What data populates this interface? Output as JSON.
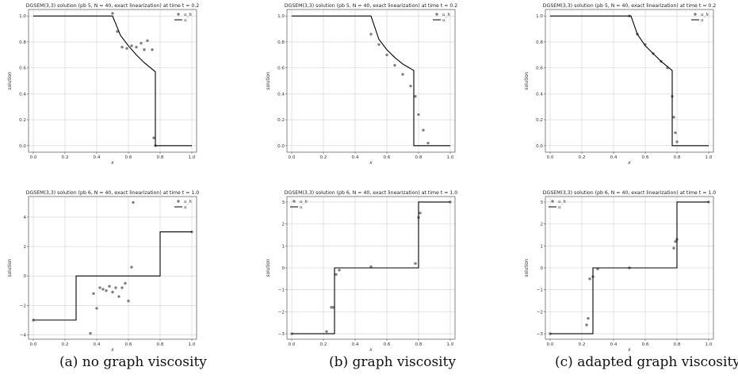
{
  "figure": {
    "captions": [
      "(a) no graph viscosity",
      "(b) graph viscosity",
      "(c) adapted graph viscosity"
    ]
  },
  "colors": {
    "numerical": "#7f7f7f",
    "exact": "#000000",
    "grid": "#d0d0d0",
    "axes": "#555555"
  },
  "chart_data": [
    {
      "type": "scatter",
      "title": "DGSEM(3,3) solution (pb 5, N = 40, exact linearization) at time t = 0.2",
      "xlabel": "x",
      "ylabel": "solution",
      "xlim": [
        -0.03,
        1.03
      ],
      "ylim": [
        -0.05,
        1.05
      ],
      "xticks": [
        "0.0",
        "0.2",
        "0.4",
        "0.6",
        "0.8",
        "1.0"
      ],
      "xtick_values": [
        0,
        0.2,
        0.4,
        0.6,
        0.8,
        1.0
      ],
      "yticks": [
        "0.0",
        "0.2",
        "0.4",
        "0.6",
        "0.8",
        "1.0"
      ],
      "ytick_values": [
        0,
        0.2,
        0.4,
        0.6,
        0.8,
        1.0
      ],
      "grid": true,
      "legend": "top-right",
      "series": [
        {
          "name": "u_h",
          "kind": "points",
          "x": [
            0.5,
            0.53,
            0.56,
            0.59,
            0.62,
            0.65,
            0.68,
            0.7,
            0.72,
            0.75,
            0.76,
            0.77
          ],
          "y": [
            1.02,
            0.88,
            0.76,
            0.75,
            0.77,
            0.76,
            0.79,
            0.74,
            0.81,
            0.74,
            0.06,
            0.0
          ]
        },
        {
          "name": "u",
          "kind": "line",
          "x": [
            0,
            0.5,
            0.55,
            0.6,
            0.65,
            0.7,
            0.76,
            0.77,
            0.77,
            1.0
          ],
          "y": [
            1.0,
            1.0,
            0.85,
            0.77,
            0.7,
            0.64,
            0.58,
            0.57,
            0.0,
            0.0
          ]
        }
      ]
    },
    {
      "type": "scatter",
      "title": "DGSEM(3,3) solution (pb 5, N = 40, exact linearization) at time t = 0.2",
      "xlabel": "x",
      "ylabel": "solution",
      "xlim": [
        -0.03,
        1.03
      ],
      "ylim": [
        -0.05,
        1.05
      ],
      "xticks": [
        "0.0",
        "0.2",
        "0.4",
        "0.6",
        "0.8",
        "1.0"
      ],
      "xtick_values": [
        0,
        0.2,
        0.4,
        0.6,
        0.8,
        1.0
      ],
      "yticks": [
        "0.0",
        "0.2",
        "0.4",
        "0.6",
        "0.8",
        "1.0"
      ],
      "ytick_values": [
        0,
        0.2,
        0.4,
        0.6,
        0.8,
        1.0
      ],
      "grid": true,
      "legend": "top-right",
      "series": [
        {
          "name": "u_h",
          "kind": "points",
          "x": [
            0.5,
            0.55,
            0.6,
            0.65,
            0.7,
            0.75,
            0.78,
            0.8,
            0.83,
            0.86
          ],
          "y": [
            0.86,
            0.78,
            0.7,
            0.62,
            0.55,
            0.46,
            0.38,
            0.24,
            0.12,
            0.02
          ]
        },
        {
          "name": "u",
          "kind": "line",
          "x": [
            0,
            0.5,
            0.55,
            0.6,
            0.65,
            0.7,
            0.77,
            0.77,
            1.0
          ],
          "y": [
            1.0,
            1.0,
            0.82,
            0.74,
            0.68,
            0.63,
            0.58,
            0.0,
            0.0
          ]
        }
      ]
    },
    {
      "type": "scatter",
      "title": "DGSEM(3,3) solution (pb 5, N = 40, exact linearization) at time t = 0.2",
      "xlabel": "x",
      "ylabel": "solution",
      "xlim": [
        -0.03,
        1.03
      ],
      "ylim": [
        -0.05,
        1.05
      ],
      "xticks": [
        "0.0",
        "0.2",
        "0.4",
        "0.6",
        "0.8",
        "1.0"
      ],
      "xtick_values": [
        0,
        0.2,
        0.4,
        0.6,
        0.8,
        1.0
      ],
      "yticks": [
        "0.0",
        "0.2",
        "0.4",
        "0.6",
        "0.8",
        "1.0"
      ],
      "ytick_values": [
        0,
        0.2,
        0.4,
        0.6,
        0.8,
        1.0
      ],
      "grid": true,
      "legend": "top-right",
      "series": [
        {
          "name": "u_h",
          "kind": "points",
          "x": [
            0.5,
            0.55,
            0.6,
            0.65,
            0.7,
            0.74,
            0.77,
            0.78,
            0.79,
            0.8
          ],
          "y": [
            1.0,
            0.86,
            0.78,
            0.71,
            0.65,
            0.6,
            0.38,
            0.22,
            0.1,
            0.03
          ]
        },
        {
          "name": "u",
          "kind": "line",
          "x": [
            0,
            0.51,
            0.55,
            0.6,
            0.65,
            0.7,
            0.76,
            0.77,
            0.77,
            1.0
          ],
          "y": [
            1.0,
            1.0,
            0.86,
            0.77,
            0.71,
            0.65,
            0.59,
            0.58,
            0.0,
            0.0
          ]
        }
      ]
    },
    {
      "type": "scatter",
      "title": "DGSEM(3,3) solution (pb 6, N = 40, exact linearization) at time t = 1.0",
      "xlabel": "x",
      "ylabel": "solution",
      "xlim": [
        -0.03,
        1.03
      ],
      "ylim": [
        -4.3,
        5.4
      ],
      "xticks": [
        "0.0",
        "0.2",
        "0.4",
        "0.6",
        "0.8",
        "1.0"
      ],
      "xtick_values": [
        0,
        0.2,
        0.4,
        0.6,
        0.8,
        1.0
      ],
      "yticks": [
        "−4",
        "−2",
        "0",
        "2",
        "4"
      ],
      "ytick_values": [
        -4,
        -2,
        0,
        2,
        4
      ],
      "grid": true,
      "legend": "top-right",
      "series": [
        {
          "name": "u_h",
          "kind": "points",
          "x": [
            0.0,
            0.36,
            0.38,
            0.4,
            0.42,
            0.44,
            0.46,
            0.48,
            0.5,
            0.52,
            0.54,
            0.56,
            0.58,
            0.6,
            0.62,
            0.63,
            1.0
          ],
          "y": [
            -3.0,
            -3.9,
            -1.2,
            -2.2,
            -0.8,
            -0.9,
            -1.0,
            -0.7,
            -1.1,
            -0.8,
            -1.4,
            -0.8,
            -0.5,
            -1.7,
            0.6,
            5.0,
            3.0
          ]
        },
        {
          "name": "u",
          "kind": "line",
          "x": [
            0,
            0.27,
            0.27,
            0.8,
            0.8,
            1.0
          ],
          "y": [
            -3.0,
            -3.0,
            0.0,
            0.0,
            3.0,
            3.0
          ]
        }
      ]
    },
    {
      "type": "scatter",
      "title": "DGSEM(3,3) solution (pb 6, N = 40, exact linearization) at time t = 1.0",
      "xlabel": "x",
      "ylabel": "solution",
      "xlim": [
        -0.03,
        1.03
      ],
      "ylim": [
        -3.25,
        3.25
      ],
      "xticks": [
        "0.0",
        "0.2",
        "0.4",
        "0.6",
        "0.8",
        "1.0"
      ],
      "xtick_values": [
        0,
        0.2,
        0.4,
        0.6,
        0.8,
        1.0
      ],
      "yticks": [
        "−3",
        "−2",
        "−1",
        "0",
        "1",
        "2",
        "3"
      ],
      "ytick_values": [
        -3,
        -2,
        -1,
        0,
        1,
        2,
        3
      ],
      "grid": true,
      "legend": "top-left",
      "series": [
        {
          "name": "u_h",
          "kind": "points",
          "x": [
            0.0,
            0.22,
            0.25,
            0.26,
            0.28,
            0.3,
            0.5,
            0.78,
            0.8,
            0.81,
            1.0
          ],
          "y": [
            -3.0,
            -2.9,
            -1.8,
            -1.8,
            -0.3,
            -0.1,
            0.05,
            0.2,
            2.3,
            2.5,
            3.0
          ]
        },
        {
          "name": "u",
          "kind": "line",
          "x": [
            0,
            0.27,
            0.27,
            0.8,
            0.8,
            1.0
          ],
          "y": [
            -3.0,
            -3.0,
            0.0,
            0.0,
            3.0,
            3.0
          ]
        }
      ]
    },
    {
      "type": "scatter",
      "title": "DGSEM(3,3) solution (pb 6, N = 40, exact linearization) at time t = 1.0",
      "xlabel": "x",
      "ylabel": "solution",
      "xlim": [
        -0.03,
        1.03
      ],
      "ylim": [
        -3.25,
        3.25
      ],
      "xticks": [
        "0.0",
        "0.2",
        "0.4",
        "0.6",
        "0.8",
        "1.0"
      ],
      "xtick_values": [
        0,
        0.2,
        0.4,
        0.6,
        0.8,
        1.0
      ],
      "yticks": [
        "−3",
        "−2",
        "−1",
        "0",
        "1",
        "2",
        "3"
      ],
      "ytick_values": [
        -3,
        -2,
        -1,
        0,
        1,
        2,
        3
      ],
      "grid": true,
      "legend": "top-left",
      "series": [
        {
          "name": "u_h",
          "kind": "points",
          "x": [
            0.0,
            0.23,
            0.24,
            0.25,
            0.27,
            0.3,
            0.5,
            0.78,
            0.79,
            0.8,
            1.0
          ],
          "y": [
            -3.0,
            -2.6,
            -2.3,
            -0.5,
            -0.4,
            -0.05,
            0.0,
            0.9,
            1.2,
            1.3,
            3.0
          ]
        },
        {
          "name": "u",
          "kind": "line",
          "x": [
            0,
            0.27,
            0.27,
            0.8,
            0.8,
            1.0
          ],
          "y": [
            -3.0,
            -3.0,
            0.0,
            0.0,
            3.0,
            3.0
          ]
        }
      ]
    }
  ]
}
